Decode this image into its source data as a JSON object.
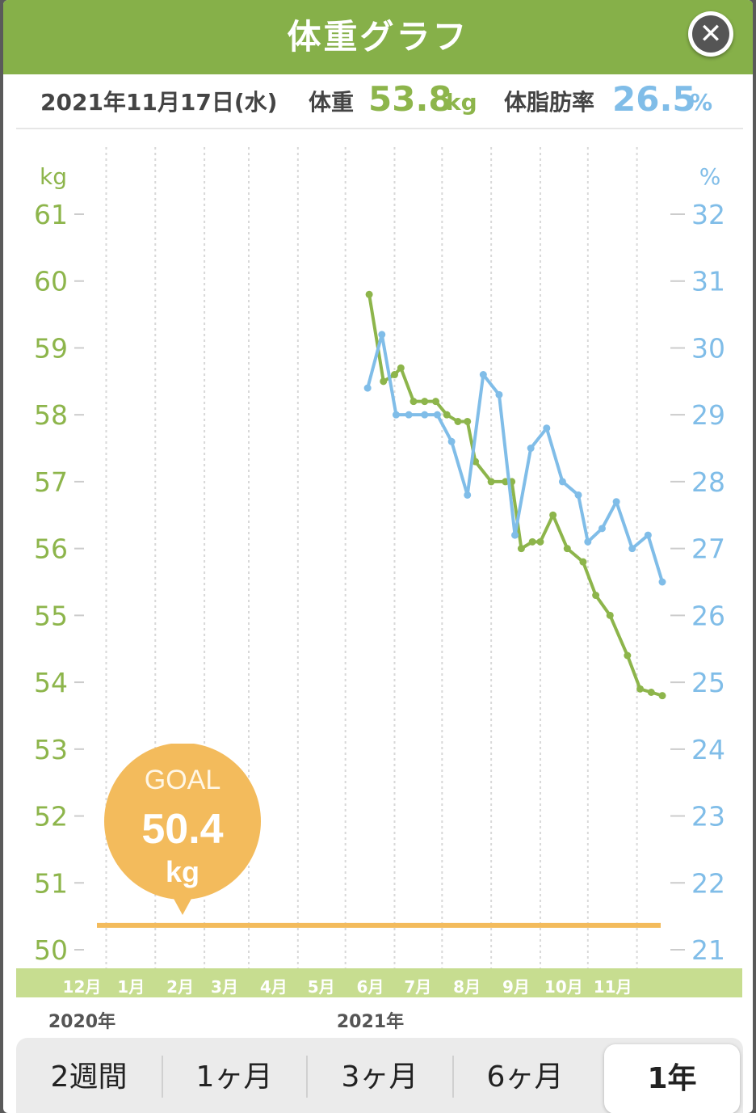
{
  "header": {
    "title": "体重グラフ"
  },
  "summary": {
    "date": "2021年11月17日(水)",
    "weight_label": "体重",
    "weight_value": "53.8",
    "weight_unit": "kg",
    "fat_label": "体脂肪率",
    "fat_value": "26.5",
    "fat_unit": "%"
  },
  "goal": {
    "label": "GOAL",
    "value": "50.4",
    "unit": "kg"
  },
  "colors": {
    "weight": "#8db54b",
    "fat": "#80bde8",
    "goal": "#f3bb5c",
    "header": "#86b049"
  },
  "chart_data": {
    "type": "line",
    "left_axis_unit": "kg",
    "right_axis_unit": "%",
    "left_ylim": [
      50,
      61
    ],
    "right_ylim": [
      21,
      32
    ],
    "left_ticks": [
      "61",
      "60",
      "59",
      "58",
      "57",
      "56",
      "55",
      "54",
      "53",
      "52",
      "51",
      "50"
    ],
    "right_ticks": [
      "32",
      "31",
      "30",
      "29",
      "28",
      "27",
      "26",
      "25",
      "24",
      "23",
      "22",
      "21"
    ],
    "months": [
      "12月",
      "1月",
      "2月",
      "3月",
      "4月",
      "5月",
      "6月",
      "7月",
      "8月",
      "9月",
      "10月",
      "11月"
    ],
    "years": [
      "2020年",
      "2021年"
    ],
    "x_start": "2020-11-17",
    "x_end": "2021-11-17",
    "goal_line": 50.4,
    "series": [
      {
        "name": "体重",
        "axis": "left",
        "points": [
          [
            "2021-05-16",
            59.8
          ],
          [
            "2021-05-25",
            58.5
          ],
          [
            "2021-06-01",
            58.6
          ],
          [
            "2021-06-05",
            58.7
          ],
          [
            "2021-06-13",
            58.2
          ],
          [
            "2021-06-20",
            58.2
          ],
          [
            "2021-06-27",
            58.2
          ],
          [
            "2021-07-04",
            58.0
          ],
          [
            "2021-07-11",
            57.9
          ],
          [
            "2021-07-17",
            57.9
          ],
          [
            "2021-07-22",
            57.3
          ],
          [
            "2021-08-01",
            57.0
          ],
          [
            "2021-08-10",
            57.0
          ],
          [
            "2021-08-14",
            57.0
          ],
          [
            "2021-08-20",
            56.0
          ],
          [
            "2021-08-27",
            56.1
          ],
          [
            "2021-09-01",
            56.1
          ],
          [
            "2021-09-09",
            56.5
          ],
          [
            "2021-09-18",
            56.0
          ],
          [
            "2021-09-28",
            55.8
          ],
          [
            "2021-10-06",
            55.3
          ],
          [
            "2021-10-15",
            55.0
          ],
          [
            "2021-10-26",
            54.4
          ],
          [
            "2021-11-03",
            53.9
          ],
          [
            "2021-11-10",
            53.85
          ],
          [
            "2021-11-17",
            53.8
          ]
        ]
      },
      {
        "name": "体脂肪率",
        "axis": "right",
        "points": [
          [
            "2021-05-15",
            29.4
          ],
          [
            "2021-05-24",
            30.2
          ],
          [
            "2021-06-02",
            29.0
          ],
          [
            "2021-06-10",
            29.0
          ],
          [
            "2021-06-20",
            29.0
          ],
          [
            "2021-06-28",
            29.0
          ],
          [
            "2021-07-07",
            28.6
          ],
          [
            "2021-07-17",
            27.8
          ],
          [
            "2021-07-27",
            29.6
          ],
          [
            "2021-08-06",
            29.3
          ],
          [
            "2021-08-16",
            27.2
          ],
          [
            "2021-08-26",
            28.5
          ],
          [
            "2021-09-05",
            28.8
          ],
          [
            "2021-09-15",
            28.0
          ],
          [
            "2021-09-25",
            27.8
          ],
          [
            "2021-10-01",
            27.1
          ],
          [
            "2021-10-10",
            27.3
          ],
          [
            "2021-10-19",
            27.7
          ],
          [
            "2021-10-29",
            27.0
          ],
          [
            "2021-11-08",
            27.2
          ],
          [
            "2021-11-17",
            26.5
          ]
        ]
      }
    ]
  },
  "range_tabs": [
    {
      "label": "2週間"
    },
    {
      "label": "1ヶ月"
    },
    {
      "label": "3ヶ月"
    },
    {
      "label": "6ヶ月"
    },
    {
      "label": "1年",
      "selected": true
    }
  ]
}
